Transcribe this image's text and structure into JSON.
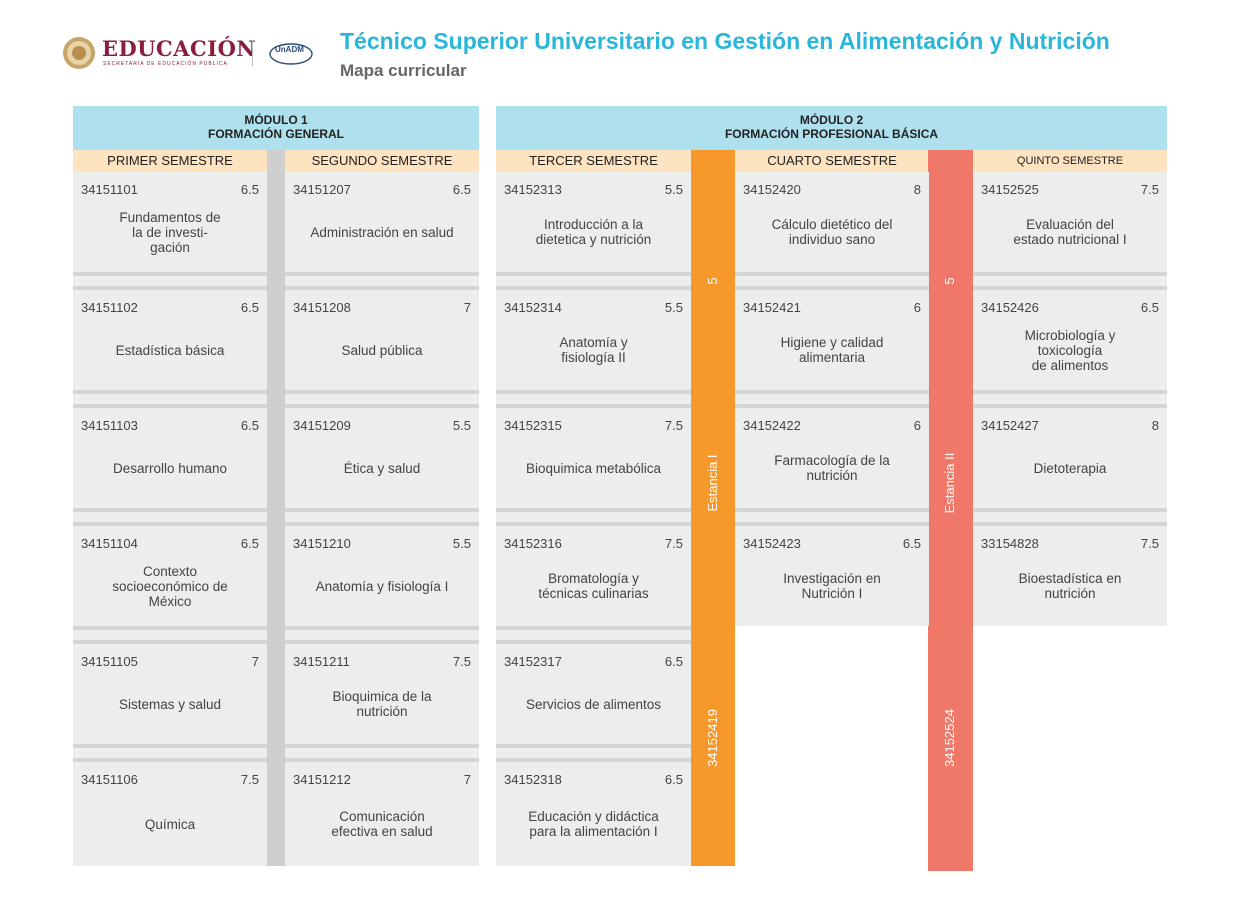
{
  "header": {
    "logo_word": "EDUCACIÓN",
    "logo_sub": "SECRETARÍA DE EDUCACIÓN PÚBLICA",
    "unadm_text": "UnADM",
    "title": "Técnico Superior Universitario en Gestión en Alimentación y Nutrición",
    "subtitle": "Mapa curricular"
  },
  "modules": [
    {
      "line1": "MÓDULO 1",
      "line2": "FORMACIÓN GENERAL"
    },
    {
      "line1": "MÓDULO 2",
      "line2": "FORMACIÓN PROFESIONAL BÁSICA"
    }
  ],
  "semesters": [
    "PRIMER SEMESTRE",
    "SEGUNDO SEMESTRE",
    "TERCER SEMESTRE",
    "CUARTO SEMESTRE",
    "QUINTO SEMESTRE"
  ],
  "columns": [
    {
      "subjects": [
        {
          "code": "34151101",
          "credits": "6.5",
          "name": "Fundamentos de\nla de investi-\ngación"
        },
        {
          "code": "34151102",
          "credits": "6.5",
          "name": "Estadística básica"
        },
        {
          "code": "34151103",
          "credits": "6.5",
          "name": "Desarrollo humano"
        },
        {
          "code": "34151104",
          "credits": "6.5",
          "name": "Contexto\nsocioeconómico de\nMéxico"
        },
        {
          "code": "34151105",
          "credits": "7",
          "name": "Sistemas y salud"
        },
        {
          "code": "34151106",
          "credits": "7.5",
          "name": "Química"
        }
      ]
    },
    {
      "subjects": [
        {
          "code": "34151207",
          "credits": "6.5",
          "name": "Administración en salud"
        },
        {
          "code": "34151208",
          "credits": "7",
          "name": "Salud pública"
        },
        {
          "code": "34151209",
          "credits": "5.5",
          "name": "Ética y salud"
        },
        {
          "code": "34151210",
          "credits": "5.5",
          "name": "Anatomía y fisiología I"
        },
        {
          "code": "34151211",
          "credits": "7.5",
          "name": "Bioquimica de la\nnutrición"
        },
        {
          "code": "34151212",
          "credits": "7",
          "name": "Comunicación\nefectiva en salud"
        }
      ]
    },
    {
      "subjects": [
        {
          "code": "34152313",
          "credits": "5.5",
          "name": "Introducción a la\ndietetica y nutrición"
        },
        {
          "code": "34152314",
          "credits": "5.5",
          "name": "Anatomía y\nfisiología II"
        },
        {
          "code": "34152315",
          "credits": "7.5",
          "name": "Bioquimica metabólica"
        },
        {
          "code": "34152316",
          "credits": "7.5",
          "name": "Bromatología y\ntécnicas culinarias"
        },
        {
          "code": "34152317",
          "credits": "6.5",
          "name": "Servicios de alimentos"
        },
        {
          "code": "34152318",
          "credits": "6.5",
          "name": "Educación y didáctica\npara la alimentación I"
        }
      ]
    },
    {
      "subjects": [
        {
          "code": "34152420",
          "credits": "8",
          "name": "Cálculo dietético del\nindividuo sano"
        },
        {
          "code": "34152421",
          "credits": "6",
          "name": "Higiene y calidad\nalimentaria"
        },
        {
          "code": "34152422",
          "credits": "6",
          "name": "Farmacología de la\nnutrición"
        },
        {
          "code": "34152423",
          "credits": "6.5",
          "name": "Investigación en\nNutrición I"
        }
      ]
    },
    {
      "subjects": [
        {
          "code": "34152525",
          "credits": "7.5",
          "name": "Evaluación del\nestado nutricional I"
        },
        {
          "code": "34152426",
          "credits": "6.5",
          "name": "Microbiología y\ntoxicología\nde alimentos"
        },
        {
          "code": "34152427",
          "credits": "8",
          "name": "Dietoterapia"
        },
        {
          "code": "33154828",
          "credits": "7.5",
          "name": "Bioestadística en\nnutrición"
        }
      ]
    }
  ],
  "stances": [
    {
      "credits": "5",
      "name": "Estancia I",
      "code": "34152419",
      "color": "#f7992a"
    },
    {
      "credits": "5",
      "name": "Estancia II",
      "code": "34152524",
      "color": "#f07869"
    }
  ]
}
